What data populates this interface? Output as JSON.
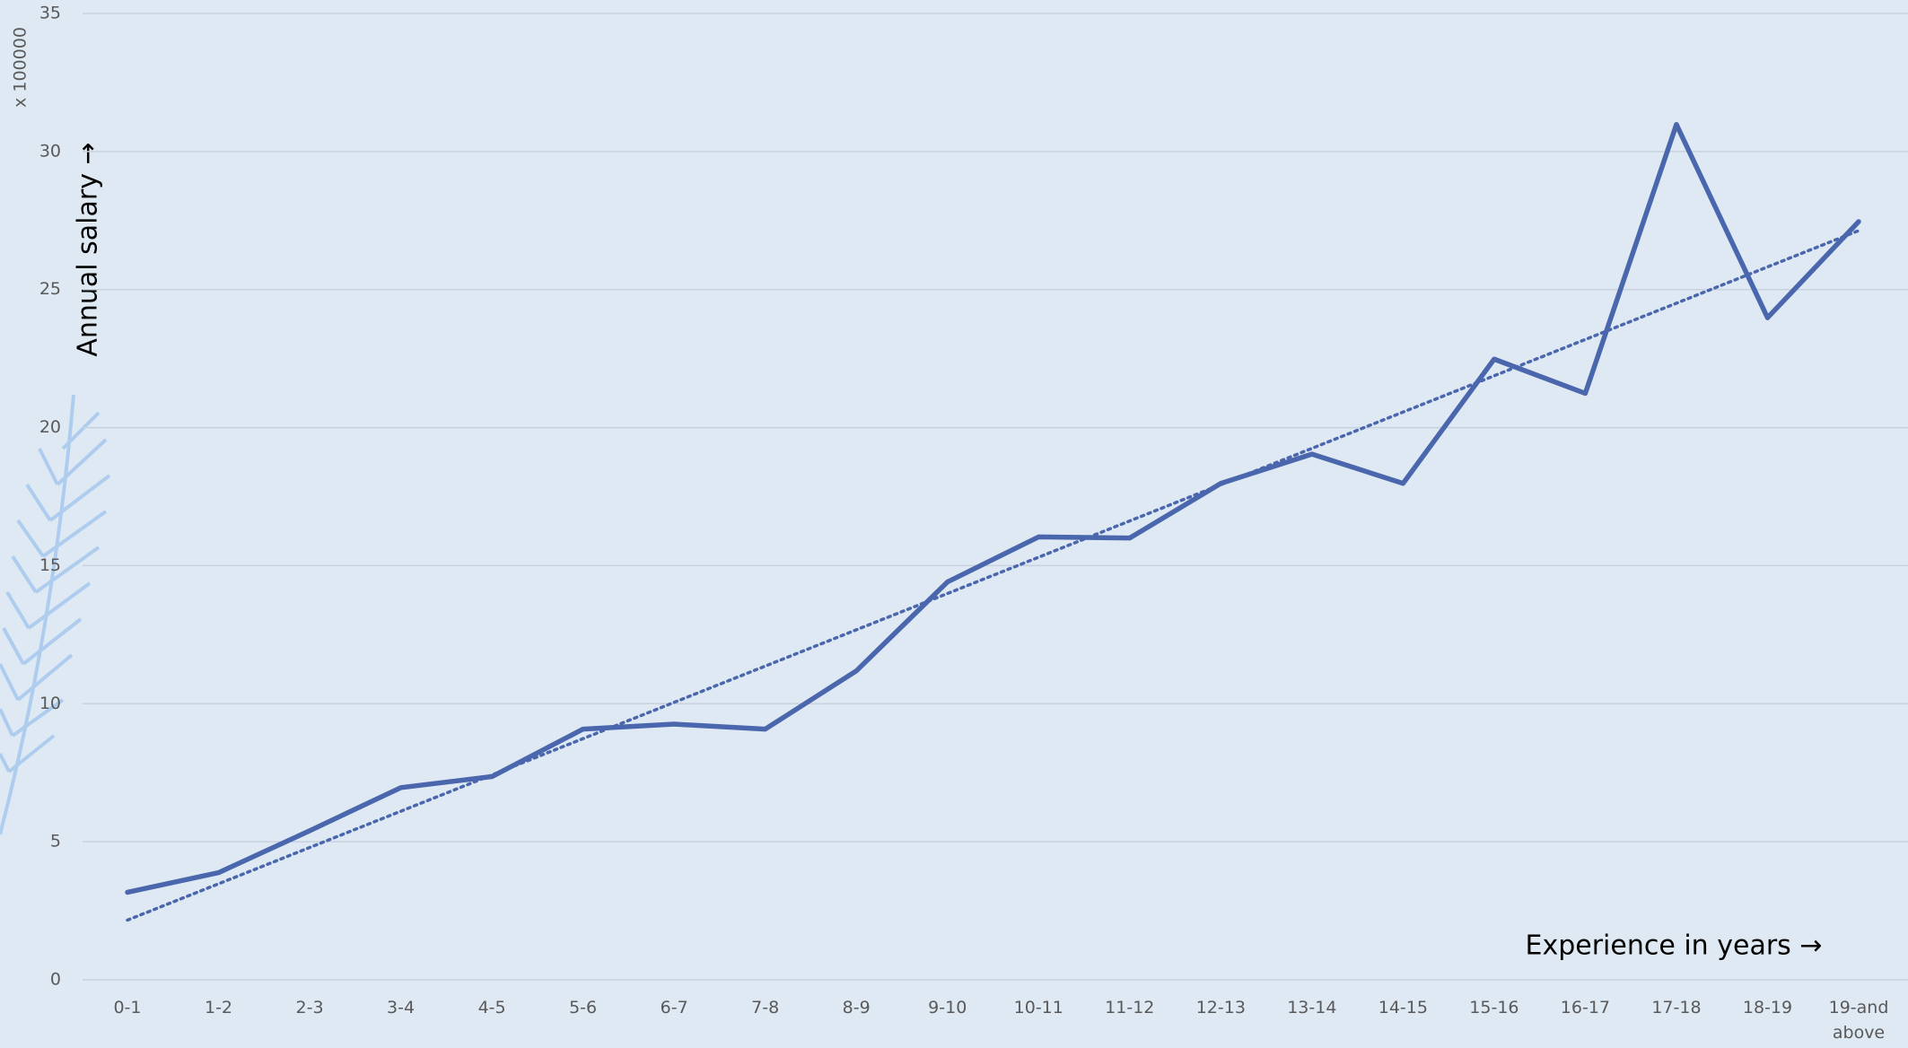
{
  "chart_data": {
    "type": "line",
    "x_label": "Experience in years →",
    "y_label": "Annual salary →",
    "y_unit": "x 100000",
    "categories": [
      "0-1",
      "1-2",
      "2-3",
      "3-4",
      "4-5",
      "5-6",
      "6-7",
      "7-8",
      "8-9",
      "9-10",
      "10-11",
      "11-12",
      "12-13",
      "13-14",
      "14-15",
      "15-16",
      "16-17",
      "17-18",
      "18-19",
      "19-and above"
    ],
    "series": [
      {
        "color": "#4a66ad",
        "values": [
          3.17,
          3.88,
          5.4,
          6.96,
          7.36,
          9.08,
          9.26,
          9.08,
          11.19,
          14.41,
          16.04,
          16.0,
          17.98,
          19.04,
          17.98,
          22.48,
          21.24,
          30.98,
          23.98,
          27.46
        ]
      }
    ],
    "trendline": "linear",
    "ylim": [
      0,
      35
    ],
    "yticks": [
      0,
      5,
      10,
      15,
      20,
      25,
      30,
      35
    ],
    "grid": true
  }
}
